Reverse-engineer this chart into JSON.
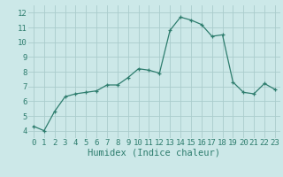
{
  "x": [
    0,
    1,
    2,
    3,
    4,
    5,
    6,
    7,
    8,
    9,
    10,
    11,
    12,
    13,
    14,
    15,
    16,
    17,
    18,
    19,
    20,
    21,
    22,
    23
  ],
  "y": [
    4.3,
    4.0,
    5.3,
    6.3,
    6.5,
    6.6,
    6.7,
    7.1,
    7.1,
    7.6,
    8.2,
    8.1,
    7.9,
    10.8,
    11.7,
    11.5,
    11.2,
    10.4,
    10.5,
    7.3,
    6.6,
    6.5,
    7.2,
    6.8
  ],
  "xlabel": "Humidex (Indice chaleur)",
  "ylim": [
    3.5,
    12.5
  ],
  "xlim": [
    -0.5,
    23.5
  ],
  "yticks": [
    4,
    5,
    6,
    7,
    8,
    9,
    10,
    11,
    12
  ],
  "xticks": [
    0,
    1,
    2,
    3,
    4,
    5,
    6,
    7,
    8,
    9,
    10,
    11,
    12,
    13,
    14,
    15,
    16,
    17,
    18,
    19,
    20,
    21,
    22,
    23
  ],
  "line_color": "#2e7d6e",
  "marker": "+",
  "bg_color": "#cce8e8",
  "grid_color": "#aacccc",
  "tick_label_color": "#2e7d6e",
  "xlabel_color": "#2e7d6e",
  "font_size": 6.5,
  "xlabel_fontsize": 7.5
}
